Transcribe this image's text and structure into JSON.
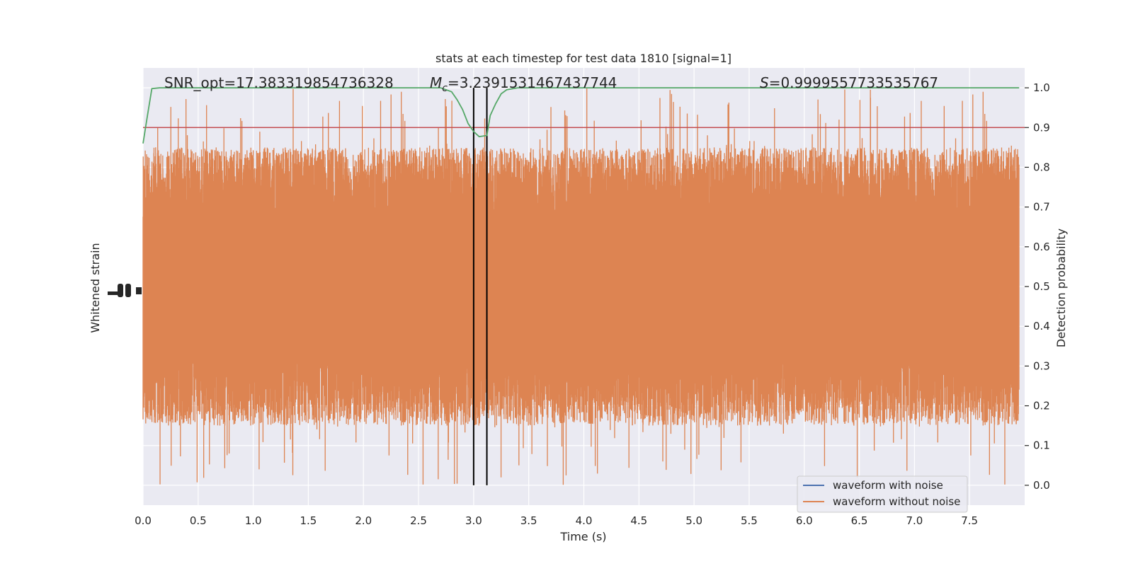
{
  "chart_data": {
    "type": "line",
    "title": "stats at each timestep for test data 1810 [signal=1]",
    "xlabel": "Time (s)",
    "ylabel_left": "Whitened strain",
    "ylabel_right": "Detection probability",
    "xlim": [
      0.0,
      8.0
    ],
    "xticks": [
      0.0,
      0.5,
      1.0,
      1.5,
      2.0,
      2.5,
      3.0,
      3.5,
      4.0,
      4.5,
      5.0,
      5.5,
      6.0,
      6.5,
      7.0,
      7.5
    ],
    "xtick_labels": [
      "0.0",
      "0.5",
      "1.0",
      "1.5",
      "2.0",
      "2.5",
      "3.0",
      "3.5",
      "4.0",
      "4.5",
      "5.0",
      "5.5",
      "6.0",
      "6.5",
      "7.0",
      "7.5"
    ],
    "right_ylim": [
      -0.05,
      1.05
    ],
    "right_yticks": [
      0.0,
      0.1,
      0.2,
      0.3,
      0.4,
      0.5,
      0.6,
      0.7,
      0.8,
      0.9,
      1.0
    ],
    "right_ytick_labels": [
      "0.0",
      "0.1",
      "0.2",
      "0.3",
      "0.4",
      "0.5",
      "0.6",
      "0.7",
      "0.8",
      "0.9",
      "1.0"
    ],
    "annotations": [
      {
        "name": "snr",
        "text": "SNR_opt=17.383319854736328"
      },
      {
        "name": "mc",
        "prefix": "M",
        "subscript": "c",
        "text": "=3.2391531467437744"
      },
      {
        "name": "s",
        "prefix": "S",
        "text": "=0.9999557733535767"
      }
    ],
    "legend": {
      "placement": "lower-right",
      "entries": [
        {
          "name": "waveform with noise",
          "color": "#4c72b0"
        },
        {
          "name": "waveform without noise",
          "color": "#dd8452"
        }
      ]
    },
    "threshold": {
      "y": 0.9,
      "color": "#c44e52"
    },
    "vlines": [
      3.0,
      3.12
    ],
    "vline_color": "#000000",
    "noise_series": {
      "color": "#dd8452",
      "typical_abs_peak": 0.35,
      "max_abs_peak": 0.5,
      "center": 0.5
    },
    "probability_series": {
      "color": "#55a868",
      "x": [
        0.0,
        0.04,
        0.08,
        0.15,
        0.3,
        2.5,
        2.7,
        2.8,
        2.85,
        2.9,
        2.95,
        3.0,
        3.05,
        3.12,
        3.15,
        3.2,
        3.25,
        3.3,
        3.4,
        3.5,
        4.0,
        5.0,
        6.0,
        7.0,
        7.95
      ],
      "y": [
        0.86,
        0.93,
        0.998,
        1.0,
        1.0,
        1.0,
        1.0,
        0.99,
        0.97,
        0.945,
        0.91,
        0.89,
        0.877,
        0.88,
        0.93,
        0.96,
        0.985,
        0.995,
        1.0,
        1.0,
        1.0,
        1.0,
        1.0,
        1.0,
        1.0
      ]
    },
    "background": "#eaeaf2",
    "grid": true,
    "grid_color": "#ffffff"
  }
}
